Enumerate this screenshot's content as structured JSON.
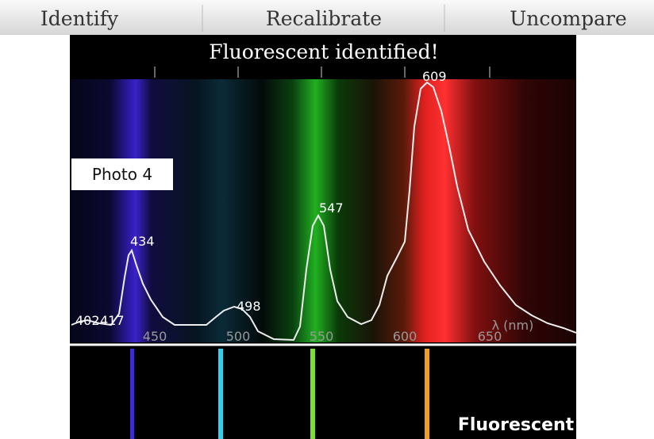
{
  "toolbar": {
    "buttons": [
      "Identify",
      "Recalibrate",
      "Uncompare"
    ]
  },
  "title": "Fluorescent identified!",
  "photo_label": "Photo 4",
  "spectrum": {
    "axis_ticks": [
      "450",
      "500",
      "550",
      "600",
      "650"
    ],
    "axis_unit": "λ (nm)",
    "peaks": [
      "402",
      "417",
      "434",
      "498",
      "547",
      "609"
    ]
  },
  "reference_label": "Fluorescent"
}
